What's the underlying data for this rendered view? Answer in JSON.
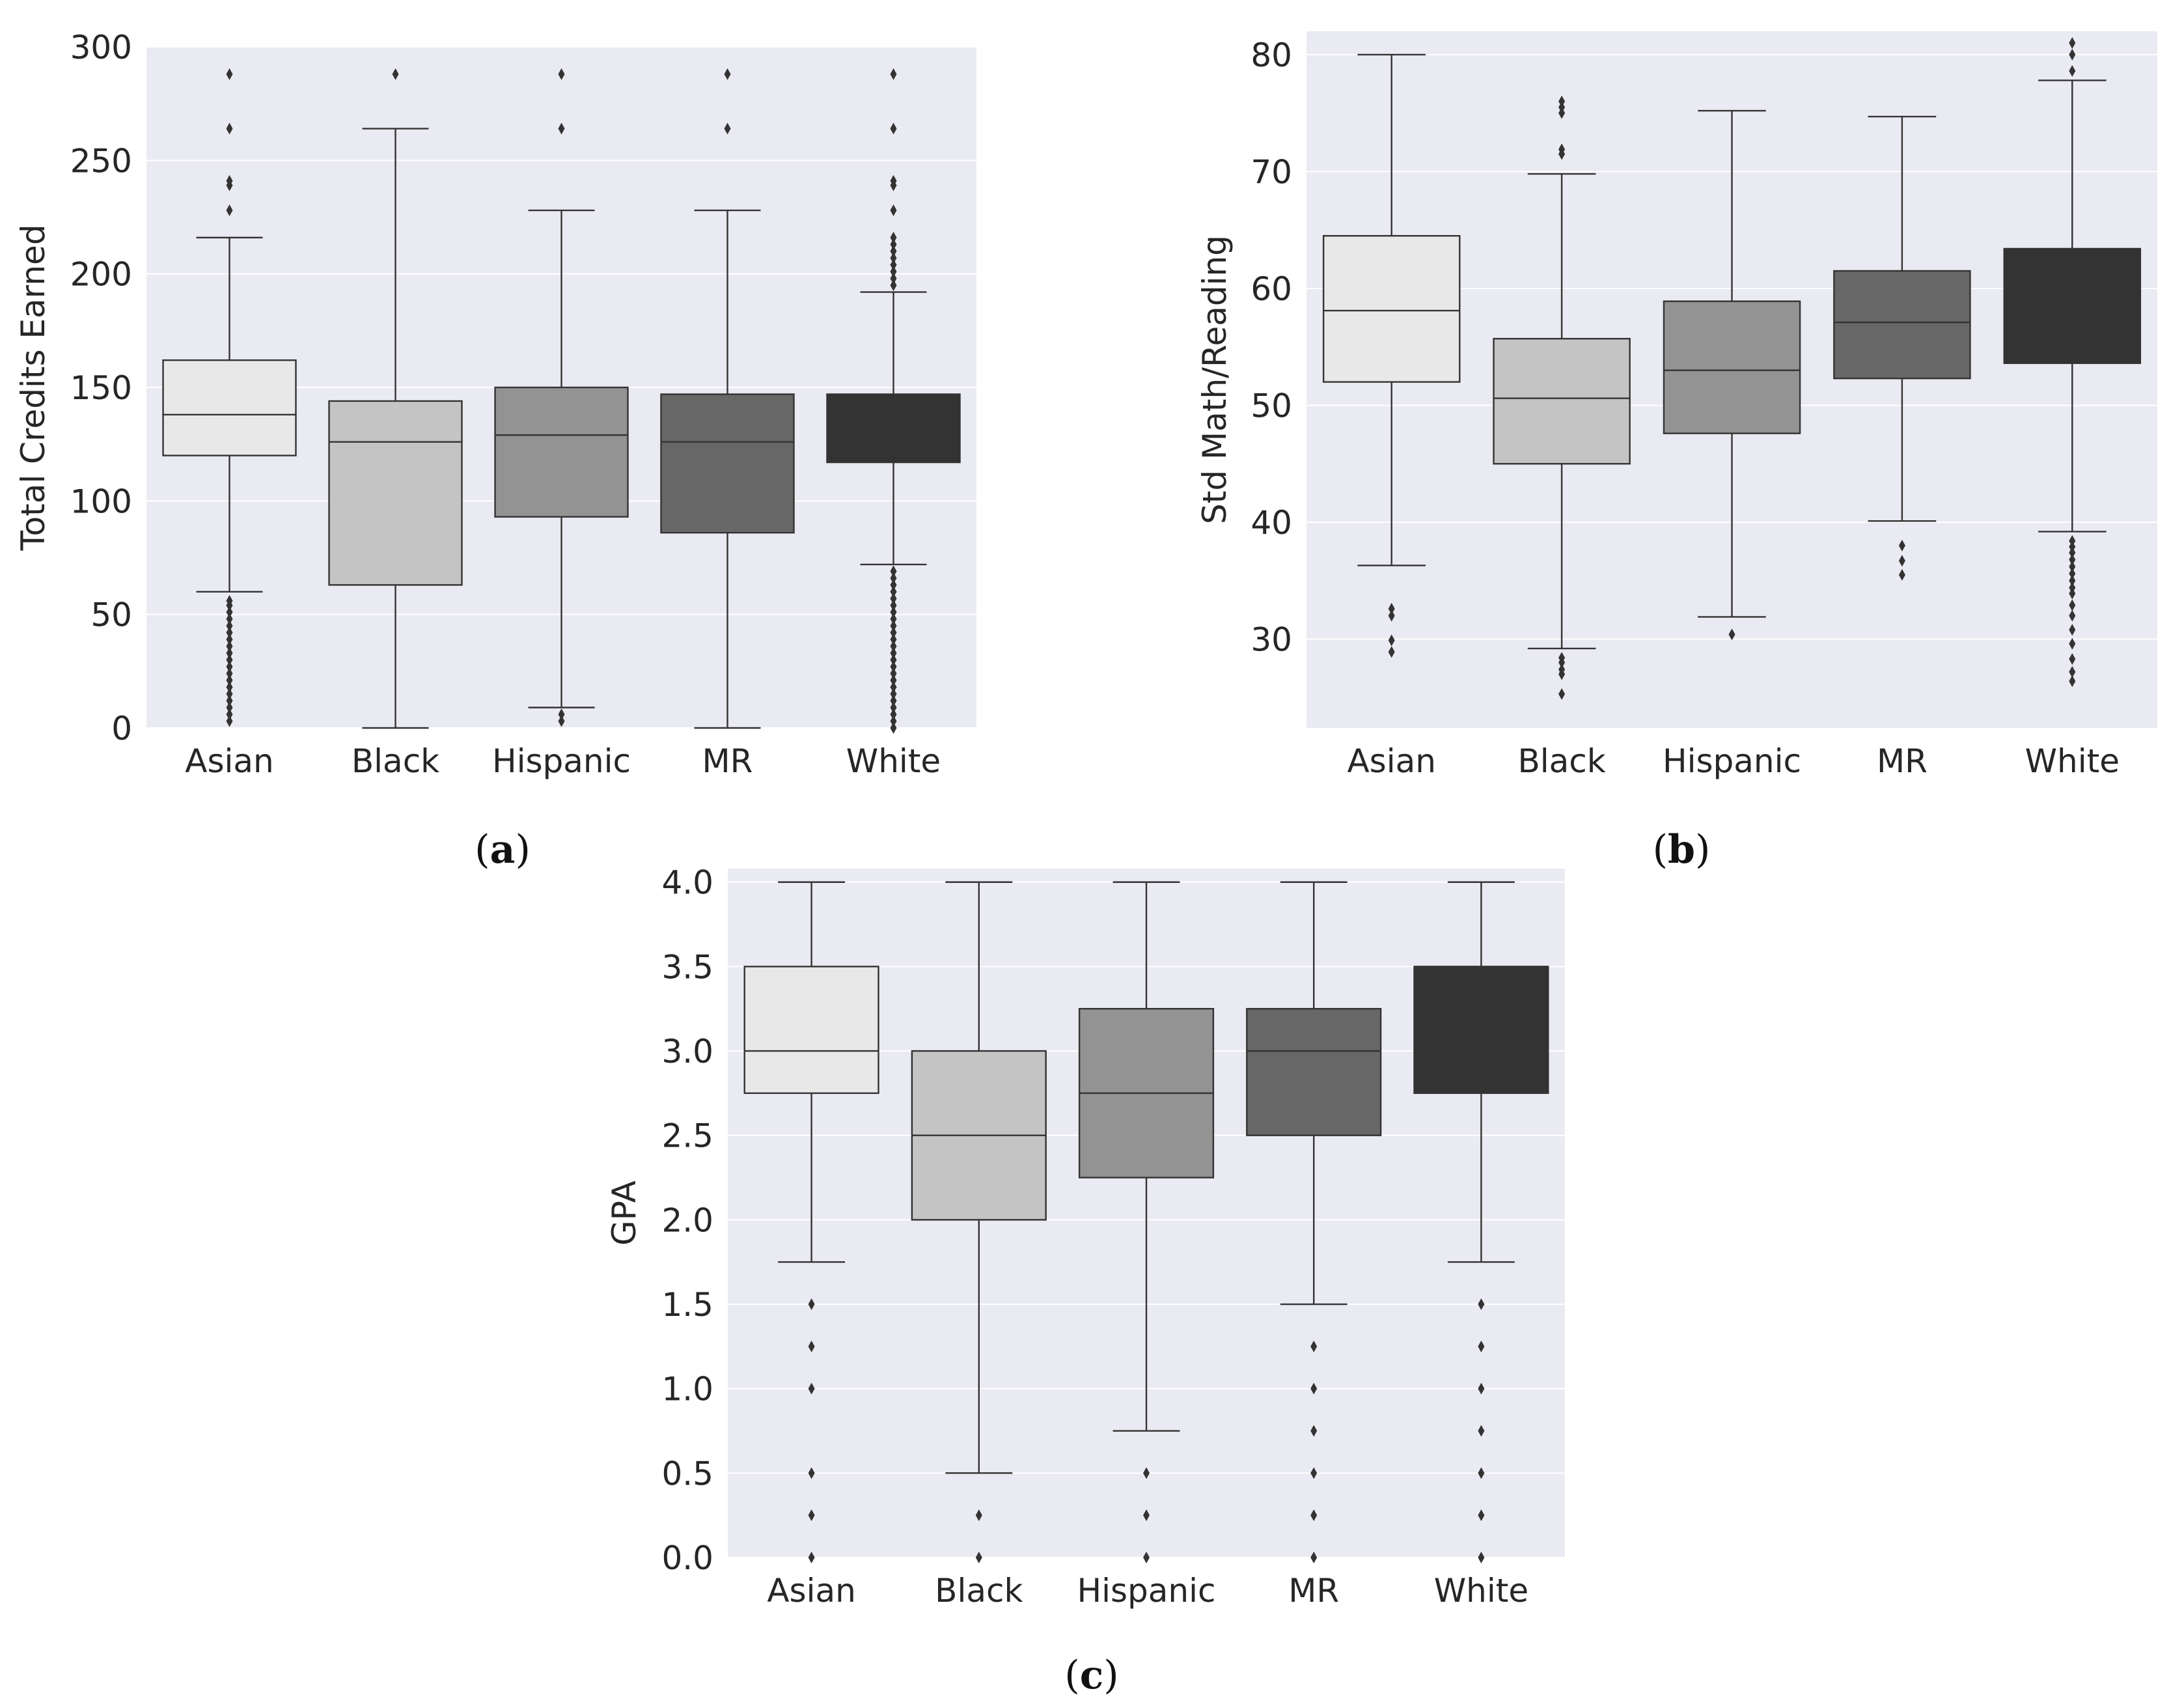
{
  "figure": {
    "captions": [
      {
        "open": "(",
        "letter": "a",
        "close": ")"
      },
      {
        "open": "(",
        "letter": "b",
        "close": ")"
      },
      {
        "open": "(",
        "letter": "c",
        "close": ")"
      }
    ]
  },
  "colors": {
    "plot_background": "#EAEAF2",
    "grid": "#FFFFFF",
    "line": "#333333",
    "boxes": [
      "#E8E8E8",
      "#C4C4C4",
      "#939393",
      "#676767",
      "#333333"
    ]
  },
  "chart_data": [
    {
      "type": "boxplot",
      "title": "",
      "xlabel": "",
      "ylabel": "Total Credits Earned",
      "categories": [
        "Asian",
        "Black",
        "Hispanic",
        "MR",
        "White"
      ],
      "ylim": [
        0,
        300
      ],
      "yticks": [
        0,
        50,
        100,
        150,
        200,
        250,
        300
      ],
      "ytick_labels": [
        "0",
        "50",
        "100",
        "150",
        "200",
        "250",
        "300"
      ],
      "grid": true,
      "boxes": [
        {
          "whisker_low": 60,
          "q1": 120,
          "median": 138,
          "q3": 162,
          "whisker_high": 216,
          "outliers": [
            3,
            6,
            9,
            12,
            15,
            18,
            21,
            24,
            27,
            30,
            33,
            36,
            39,
            42,
            45,
            48,
            51,
            54,
            56,
            228,
            239,
            241,
            264,
            288
          ]
        },
        {
          "whisker_low": 0,
          "q1": 63,
          "median": 126,
          "q3": 144,
          "whisker_high": 264,
          "outliers": [
            288
          ]
        },
        {
          "whisker_low": 9,
          "q1": 93,
          "median": 129,
          "q3": 150,
          "whisker_high": 228,
          "outliers": [
            3,
            6,
            264,
            288
          ]
        },
        {
          "whisker_low": 0,
          "q1": 86,
          "median": 126,
          "q3": 147,
          "whisker_high": 228,
          "outliers": [
            264,
            288
          ]
        },
        {
          "whisker_low": 72,
          "q1": 117,
          "median": 129,
          "q3": 147,
          "whisker_high": 192,
          "outliers": [
            0,
            3,
            6,
            9,
            12,
            15,
            18,
            21,
            24,
            27,
            30,
            33,
            36,
            39,
            42,
            45,
            48,
            51,
            54,
            57,
            60,
            63,
            66,
            69,
            195,
            198,
            201,
            204,
            207,
            210,
            213,
            216,
            228,
            239,
            241,
            264,
            288
          ]
        }
      ]
    },
    {
      "type": "boxplot",
      "title": "",
      "xlabel": "",
      "ylabel": "Std Math/Reading",
      "categories": [
        "Asian",
        "Black",
        "Hispanic",
        "MR",
        "White"
      ],
      "ylim": [
        22.4,
        82
      ],
      "yticks": [
        30,
        40,
        50,
        60,
        70,
        80
      ],
      "ytick_labels": [
        "30",
        "40",
        "50",
        "60",
        "70",
        "80"
      ],
      "grid": true,
      "boxes": [
        {
          "whisker_low": 36.3,
          "q1": 52.0,
          "median": 58.1,
          "q3": 64.5,
          "whisker_high": 80.0,
          "outliers": [
            28.9,
            29.9,
            32.0,
            32.6
          ]
        },
        {
          "whisker_low": 29.2,
          "q1": 45.0,
          "median": 50.6,
          "q3": 55.7,
          "whisker_high": 69.8,
          "outliers": [
            25.3,
            27.0,
            27.4,
            28.0,
            28.4,
            71.5,
            71.9,
            75.0,
            75.5,
            76.0
          ]
        },
        {
          "whisker_low": 31.9,
          "q1": 47.6,
          "median": 53.0,
          "q3": 58.9,
          "whisker_high": 75.2,
          "outliers": [
            30.4
          ]
        },
        {
          "whisker_low": 40.1,
          "q1": 52.3,
          "median": 57.1,
          "q3": 61.5,
          "whisker_high": 74.7,
          "outliers": [
            35.5,
            36.7,
            38.0
          ]
        },
        {
          "whisker_low": 39.2,
          "q1": 53.6,
          "median": 58.7,
          "q3": 63.4,
          "whisker_high": 77.8,
          "outliers": [
            26.4,
            27.2,
            28.3,
            29.6,
            30.8,
            32.0,
            32.9,
            33.9,
            34.4,
            35.0,
            35.6,
            36.2,
            36.8,
            37.4,
            37.9,
            38.4,
            78.6,
            80.0,
            81.0
          ]
        }
      ]
    },
    {
      "type": "boxplot",
      "title": "",
      "xlabel": "",
      "ylabel": "GPA",
      "categories": [
        "Asian",
        "Black",
        "Hispanic",
        "MR",
        "White"
      ],
      "ylim": [
        0,
        4.08
      ],
      "yticks": [
        0,
        0.5,
        1.0,
        1.5,
        2.0,
        2.5,
        3.0,
        3.5,
        4.0
      ],
      "ytick_labels": [
        "0.0",
        "0.5",
        "1.0",
        "1.5",
        "2.0",
        "2.5",
        "3.0",
        "3.5",
        "4.0"
      ],
      "grid": true,
      "boxes": [
        {
          "whisker_low": 1.75,
          "q1": 2.75,
          "median": 3.0,
          "q3": 3.5,
          "whisker_high": 4.0,
          "outliers": [
            0.0,
            0.25,
            0.5,
            1.0,
            1.25,
            1.5
          ]
        },
        {
          "whisker_low": 0.5,
          "q1": 2.0,
          "median": 2.5,
          "q3": 3.0,
          "whisker_high": 4.0,
          "outliers": [
            0.0,
            0.25
          ]
        },
        {
          "whisker_low": 0.75,
          "q1": 2.25,
          "median": 2.75,
          "q3": 3.25,
          "whisker_high": 4.0,
          "outliers": [
            0.0,
            0.25,
            0.5
          ]
        },
        {
          "whisker_low": 1.5,
          "q1": 2.5,
          "median": 3.0,
          "q3": 3.25,
          "whisker_high": 4.0,
          "outliers": [
            0.0,
            0.25,
            0.5,
            0.75,
            1.0,
            1.25
          ]
        },
        {
          "whisker_low": 1.75,
          "q1": 2.75,
          "median": 3.25,
          "q3": 3.5,
          "whisker_high": 4.0,
          "outliers": [
            0.0,
            0.25,
            0.5,
            0.75,
            1.0,
            1.25,
            1.5
          ]
        }
      ]
    }
  ]
}
